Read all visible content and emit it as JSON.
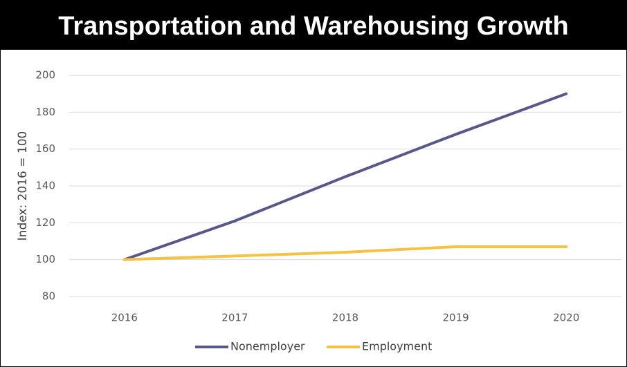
{
  "chart_data": {
    "type": "line",
    "title": "Transportation and Warehousing Growth",
    "y_label": "Index: 2016 = 100",
    "categories": [
      "2016",
      "2017",
      "2018",
      "2019",
      "2020"
    ],
    "series": [
      {
        "name": "Nonemployer",
        "color": "#59568c",
        "values": [
          100,
          121,
          145,
          168,
          190
        ]
      },
      {
        "name": "Employment",
        "color": "#f5c242",
        "values": [
          100,
          102,
          104,
          107,
          107
        ]
      }
    ],
    "ylim": [
      80,
      200
    ],
    "yticks": [
      80,
      100,
      120,
      140,
      160,
      180,
      200
    ],
    "grid": true,
    "legend": "bottom"
  }
}
